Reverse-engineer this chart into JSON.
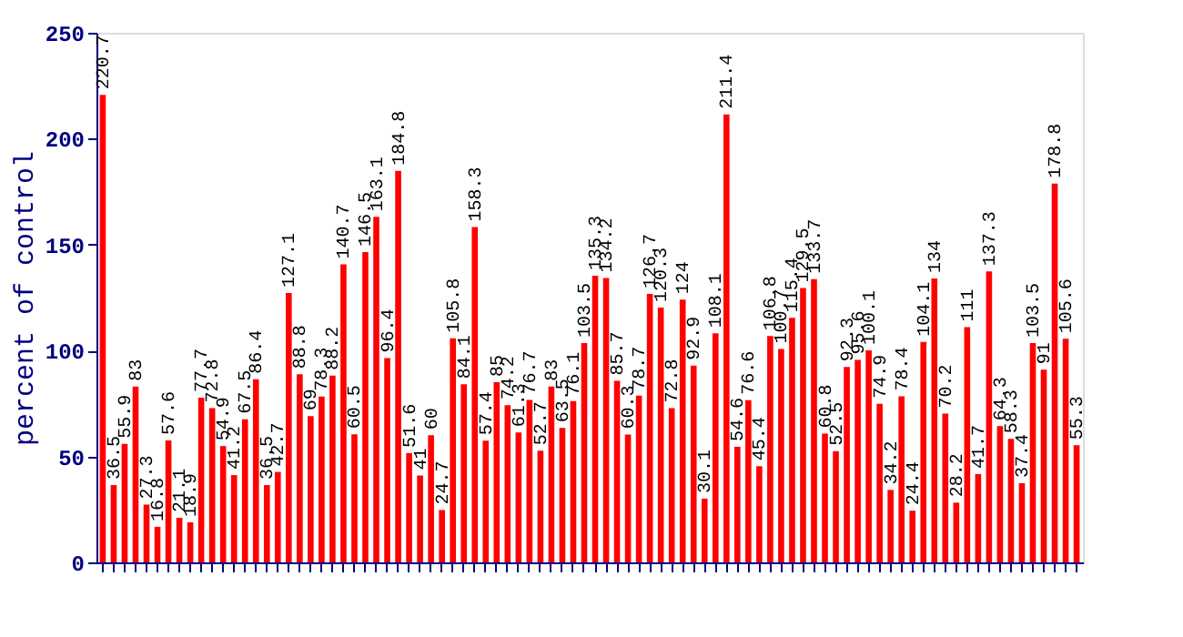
{
  "chart_data": {
    "type": "bar",
    "ylabel": "percent of control",
    "color": "#ff0000",
    "categories": [
      null,
      null,
      null,
      null,
      null,
      null,
      null,
      null,
      null,
      null,
      null,
      null,
      null,
      null,
      null,
      null,
      null,
      null,
      null,
      null,
      null,
      null,
      null,
      null,
      null,
      null,
      null,
      null,
      null,
      null,
      null,
      null,
      null,
      null,
      null,
      null,
      null,
      null,
      null,
      null,
      null,
      null,
      null,
      null,
      null,
      null,
      null,
      null,
      null,
      null,
      null,
      null,
      null,
      null,
      null,
      null,
      null,
      null,
      null,
      null,
      null,
      null,
      null,
      null,
      null,
      null,
      null,
      null,
      null,
      null,
      null,
      null,
      null,
      null,
      null,
      null,
      null,
      null,
      null,
      null,
      null,
      null,
      null,
      null,
      null,
      null,
      null,
      null,
      null,
      null
    ],
    "values": [
      220.7,
      36.5,
      55.9,
      83,
      27.3,
      16.8,
      57.6,
      21.1,
      18.9,
      77.7,
      72.8,
      54.9,
      41.2,
      67.5,
      86.4,
      36.5,
      42.7,
      127.1,
      88.8,
      69,
      78.3,
      88.2,
      140.7,
      60.5,
      146.5,
      163.1,
      96.4,
      184.8,
      51.6,
      41,
      60,
      24.7,
      105.8,
      84.1,
      158.3,
      57.4,
      85,
      74.2,
      61.3,
      76.7,
      52.7,
      83,
      63.5,
      76.1,
      103.5,
      135.3,
      134.2,
      85.7,
      60.3,
      78.7,
      126.7,
      120.3,
      72.8,
      124,
      92.9,
      30.1,
      108.1,
      211.4,
      54.6,
      76.6,
      45.4,
      106.8,
      100.7,
      115.4,
      129.5,
      133.7,
      60.8,
      52.5,
      92.3,
      95.6,
      100.1,
      74.9,
      34.2,
      78.4,
      24.4,
      104.1,
      134,
      70.2,
      28.2,
      111,
      41.7,
      137.3,
      64.3,
      58.3,
      37.4,
      103.5,
      91,
      178.8,
      105.6,
      55.3
    ],
    "ylim": [
      0,
      250
    ],
    "yticks": [
      0,
      50,
      100,
      150,
      200,
      250
    ],
    "grid": false,
    "data_labels": true,
    "tick_labels": "y"
  }
}
